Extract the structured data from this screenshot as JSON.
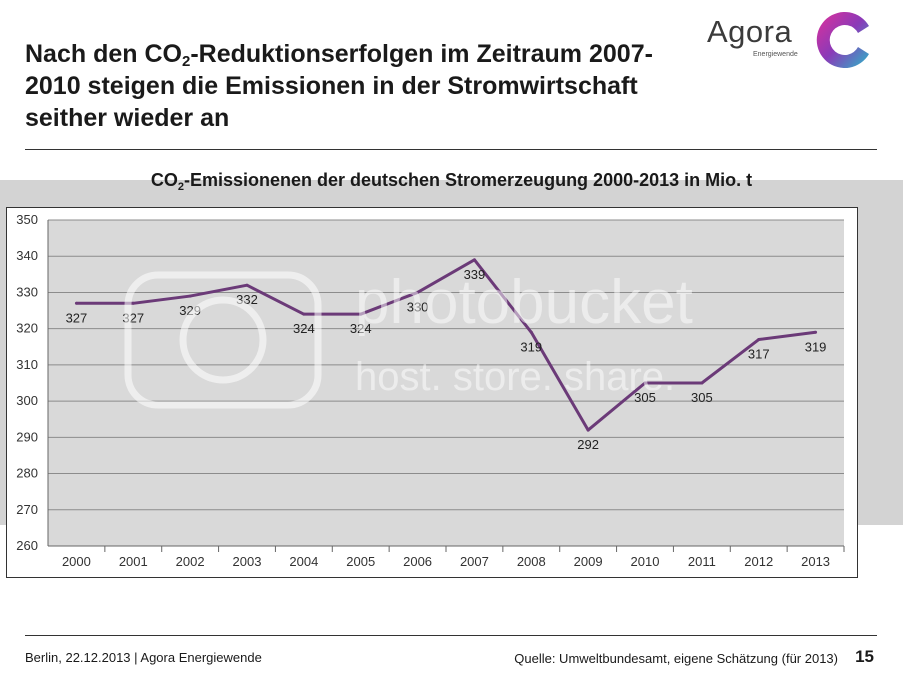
{
  "slide": {
    "title_part1": "Nach den CO",
    "title_sub": "2",
    "title_part2": "-Reduktionserfolgen im Zeitraum 2007-2010 steigen die Emissionen in der Stromwirtschaft seither wieder an"
  },
  "logo": {
    "word": "Agora",
    "sub": "Energiewende"
  },
  "chart_title": {
    "part1": "CO",
    "sub": "2",
    "part2": "-Emissionenen  der deutschen Stromerzeugung 2000-2013 in Mio. t"
  },
  "chart_data": {
    "type": "line",
    "title": "CO2-Emissionenen  der deutschen Stromerzeugung 2000-2013 in Mio. t",
    "categories": [
      "2000",
      "2001",
      "2002",
      "2003",
      "2004",
      "2005",
      "2006",
      "2007",
      "2008",
      "2009",
      "2010",
      "2011",
      "2012",
      "2013"
    ],
    "series": [
      {
        "values": [
          327,
          327,
          329,
          332,
          324,
          324,
          330,
          339,
          319,
          292,
          305,
          305,
          317,
          319
        ]
      }
    ],
    "ylim": [
      260,
      350
    ],
    "yticks": [
      260,
      270,
      280,
      290,
      300,
      310,
      320,
      330,
      340,
      350
    ],
    "grid": true,
    "line_color": "#6b3a78",
    "plot_bg": "#d9d9d9"
  },
  "footer": {
    "left": "Berlin, 22.12.2013 | Agora Energiewende",
    "source": "Quelle: Umweltbundesamt, eigene Schätzung (für 2013)",
    "page": "15"
  },
  "watermark": {
    "line1": "photobucket",
    "line2": "host. store. share."
  }
}
